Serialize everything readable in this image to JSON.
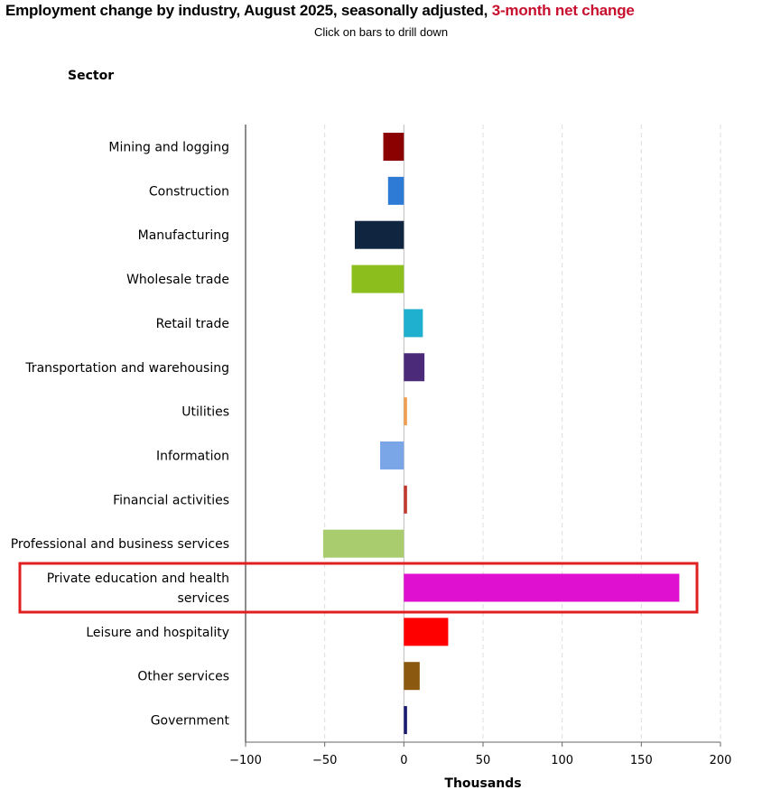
{
  "header": {
    "title_main": "Employment change by industry, August 2025, seasonally adjusted,",
    "title_accent": "3-month net change",
    "subtitle": "Click on bars to drill down",
    "sector_label": "Sector"
  },
  "colors": {
    "accent": "#c8102e",
    "highlight_box": "#e02020",
    "axis": "#666666",
    "grid": "#dcdcdc"
  },
  "chart_data": {
    "type": "bar",
    "orientation": "horizontal",
    "title": "Employment change by industry, August 2025, seasonally adjusted, 3-month net change",
    "subtitle": "Click on bars to drill down",
    "xlabel": "Thousands",
    "ylabel": "Sector",
    "xlim": [
      -100,
      200
    ],
    "xticks": [
      -100,
      -50,
      0,
      50,
      100,
      150,
      200
    ],
    "xtick_labels": [
      "−100",
      "−50",
      "0",
      "50",
      "100",
      "150",
      "200"
    ],
    "grid": "vertical dashed",
    "highlighted_category": "Private education and health services",
    "categories": [
      {
        "label": [
          "Mining and logging"
        ],
        "value": -13,
        "color": "#8b0000"
      },
      {
        "label": [
          "Construction"
        ],
        "value": -10,
        "color": "#2e7bd6"
      },
      {
        "label": [
          "Manufacturing"
        ],
        "value": -31,
        "color": "#0f2540"
      },
      {
        "label": [
          "Wholesale trade"
        ],
        "value": -33,
        "color": "#8cbf1e"
      },
      {
        "label": [
          "Retail trade"
        ],
        "value": 12,
        "color": "#1fb0d0"
      },
      {
        "label": [
          "Transportation and warehousing"
        ],
        "value": 13,
        "color": "#4b2a7a"
      },
      {
        "label": [
          "Utilities"
        ],
        "value": 2,
        "color": "#f0a050"
      },
      {
        "label": [
          "Information"
        ],
        "value": -15,
        "color": "#7aa6e8"
      },
      {
        "label": [
          "Financial activities"
        ],
        "value": 2,
        "color": "#c0392b"
      },
      {
        "label": [
          "Professional and business services"
        ],
        "value": -51,
        "color": "#a8cc6e"
      },
      {
        "label": [
          "Private education and health",
          "services"
        ],
        "value": 174,
        "color": "#e010d0"
      },
      {
        "label": [
          "Leisure and hospitality"
        ],
        "value": 28,
        "color": "#ff0000"
      },
      {
        "label": [
          "Other services"
        ],
        "value": 10,
        "color": "#8b5a10"
      },
      {
        "label": [
          "Government"
        ],
        "value": 2,
        "color": "#1a1a6e"
      }
    ]
  }
}
